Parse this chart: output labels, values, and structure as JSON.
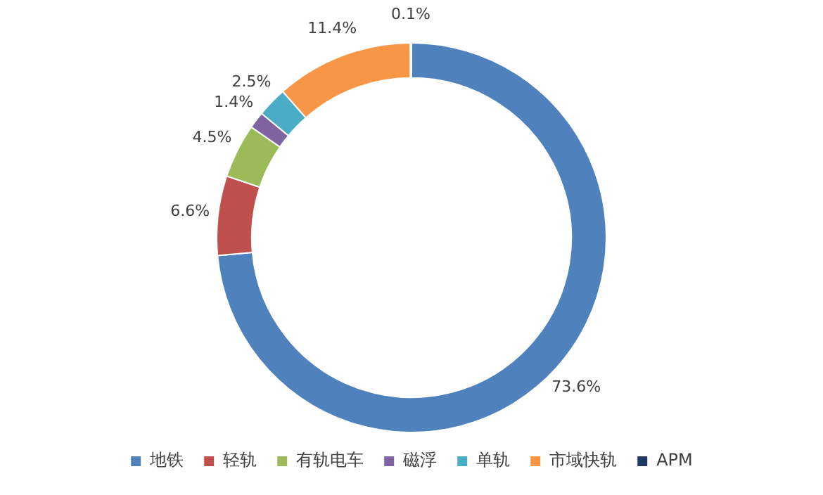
{
  "chart_data": {
    "type": "donut",
    "categories": [
      "地铁",
      "轻轨",
      "有轨电车",
      "磁浮",
      "单轨",
      "市域快轨",
      "APM"
    ],
    "values": [
      73.6,
      6.6,
      4.5,
      1.4,
      2.5,
      11.4,
      0.1
    ],
    "colors": [
      "#4f81bd",
      "#c0504d",
      "#9bbb59",
      "#8064a2",
      "#4bacc6",
      "#f79646",
      "#203864"
    ],
    "value_labels": [
      "73.6%",
      "6.6%",
      "4.5%",
      "1.4%",
      "2.5%",
      "11.4%",
      "0.1%"
    ],
    "legend": "bottom"
  }
}
